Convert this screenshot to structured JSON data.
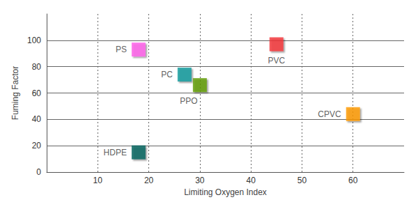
{
  "chart_data": {
    "type": "scatter",
    "x_label": "Limiting Oxygen Index",
    "y_label": "Fuming Factor",
    "labels": [
      "PS",
      "PC",
      "PPO",
      "PVC",
      "CPVC",
      "HDPE"
    ],
    "x": [
      18,
      27,
      30,
      45,
      60,
      18
    ],
    "values": [
      93,
      74,
      66,
      97,
      44,
      15
    ],
    "colors": [
      "#ff5fea",
      "#149a9c",
      "#5e9a08",
      "#f5333a",
      "#ff9a00",
      "#07625c"
    ],
    "xlim": [
      0,
      70
    ],
    "xticks": [
      10,
      20,
      30,
      40,
      50,
      60
    ],
    "ylim": [
      0,
      120
    ],
    "yticks": [
      0,
      20,
      40,
      60,
      80,
      100
    ],
    "marker": "square",
    "grid": true
  }
}
